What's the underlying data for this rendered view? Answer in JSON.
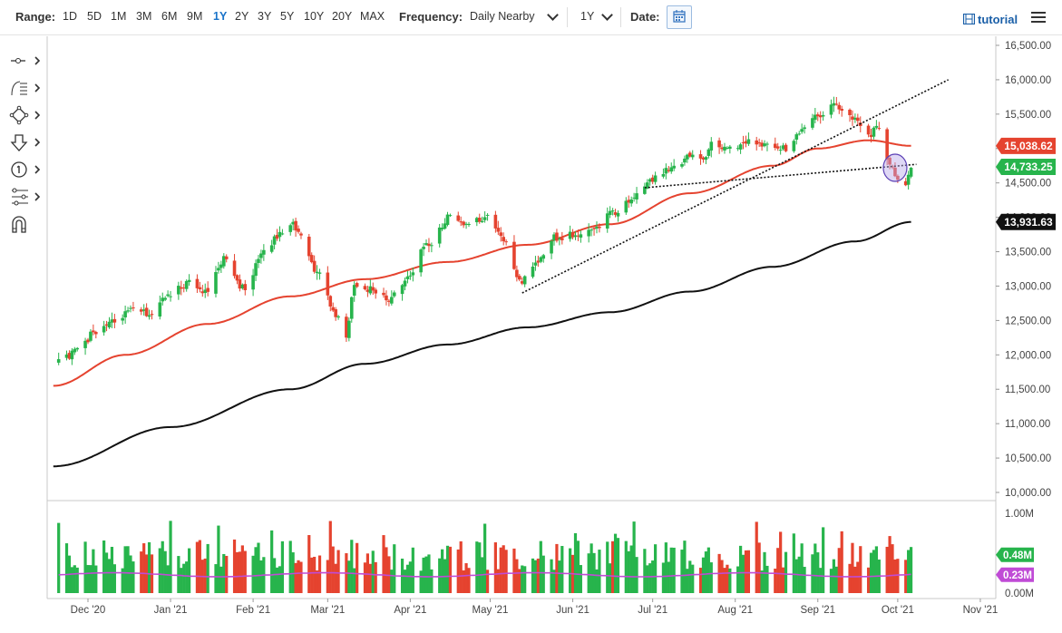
{
  "toolbar": {
    "range_label": "Range:",
    "ranges": [
      "1D",
      "5D",
      "1M",
      "3M",
      "6M",
      "9M",
      "1Y",
      "2Y",
      "3Y",
      "5Y",
      "10Y",
      "20Y",
      "MAX"
    ],
    "active_range": "1Y",
    "frequency_label": "Frequency:",
    "frequency_value": "Daily Nearby",
    "period_value": "1Y",
    "date_label": "Date:",
    "tutorial_label": "tutorial"
  },
  "side_tools": [
    "crosshair-tool-icon",
    "fibonacci-tool-icon",
    "shapes-tool-icon",
    "arrow-down-tool-icon",
    "numbered-marker-tool-icon",
    "pattern-tool-icon",
    "magnet-tool-icon"
  ],
  "chart_data": {
    "type": "candlestick",
    "price_axis": {
      "range": [
        10000,
        16500
      ],
      "ticks": [
        "16,500.00",
        "16,000.00",
        "15,500.00",
        "15,000.00",
        "14,500.00",
        "14,000.00",
        "13,500.00",
        "13,000.00",
        "12,500.00",
        "12,000.00",
        "11,500.00",
        "11,000.00",
        "10,500.00",
        "10,000.00"
      ],
      "badges": [
        {
          "value": "15,038.62",
          "color": "#e5432f",
          "series": "sma-50"
        },
        {
          "value": "14,733.25",
          "color": "#27b44c",
          "series": "last-price"
        },
        {
          "value": "13,931.63",
          "color": "#111111",
          "series": "sma-200"
        }
      ]
    },
    "volume_axis": {
      "range": [
        0,
        1000000
      ],
      "ticks": [
        "1.00M",
        "0.50M",
        "0.00M"
      ],
      "badges": [
        {
          "value": "0.48M",
          "color": "#27b44c",
          "series": "volume"
        },
        {
          "value": "0.23M",
          "color": "#c04bd6",
          "series": "volume-average"
        }
      ]
    },
    "x_ticks": [
      "Dec '20",
      "Jan '21",
      "Feb '21",
      "Mar '21",
      "Apr '21",
      "May '21",
      "Jun '21",
      "Jul '21",
      "Aug '21",
      "Sep '21",
      "Oct '21",
      "Nov '21"
    ],
    "price_anchors": [
      [
        "2020-11-20",
        11900
      ],
      [
        "2020-11-27",
        12050
      ],
      [
        "2020-12-04",
        12350
      ],
      [
        "2020-12-11",
        12500
      ],
      [
        "2020-12-18",
        12650
      ],
      [
        "2020-12-24",
        12600
      ],
      [
        "2020-12-31",
        12860
      ],
      [
        "2021-01-08",
        13050
      ],
      [
        "2021-01-15",
        12900
      ],
      [
        "2021-01-21",
        13400
      ],
      [
        "2021-01-29",
        12950
      ],
      [
        "2021-02-05",
        13500
      ],
      [
        "2021-02-12",
        13800
      ],
      [
        "2021-02-16",
        13900
      ],
      [
        "2021-02-19",
        13700
      ],
      [
        "2021-02-25",
        13200
      ],
      [
        "2021-03-04",
        12600
      ],
      [
        "2021-03-08",
        12300
      ],
      [
        "2021-03-11",
        13000
      ],
      [
        "2021-03-18",
        12950
      ],
      [
        "2021-03-24",
        12800
      ],
      [
        "2021-03-31",
        13100
      ],
      [
        "2021-04-07",
        13600
      ],
      [
        "2021-04-16",
        14000
      ],
      [
        "2021-04-23",
        13900
      ],
      [
        "2021-04-29",
        14000
      ],
      [
        "2021-05-06",
        13700
      ],
      [
        "2021-05-12",
        13050
      ],
      [
        "2021-05-18",
        13350
      ],
      [
        "2021-05-25",
        13700
      ],
      [
        "2021-06-01",
        13750
      ],
      [
        "2021-06-08",
        13800
      ],
      [
        "2021-06-15",
        14050
      ],
      [
        "2021-06-22",
        14200
      ],
      [
        "2021-06-30",
        14550
      ],
      [
        "2021-07-08",
        14700
      ],
      [
        "2021-07-16",
        14900
      ],
      [
        "2021-07-20",
        14850
      ],
      [
        "2021-07-23",
        15050
      ],
      [
        "2021-07-30",
        15000
      ],
      [
        "2021-08-06",
        15100
      ],
      [
        "2021-08-13",
        15050
      ],
      [
        "2021-08-19",
        15000
      ],
      [
        "2021-08-26",
        15250
      ],
      [
        "2021-09-01",
        15450
      ],
      [
        "2021-09-07",
        15650
      ],
      [
        "2021-09-10",
        15600
      ],
      [
        "2021-09-15",
        15450
      ],
      [
        "2021-09-20",
        15200
      ],
      [
        "2021-09-24",
        15300
      ],
      [
        "2021-09-28",
        14800
      ],
      [
        "2021-09-30",
        14600
      ],
      [
        "2021-10-04",
        14500
      ],
      [
        "2021-10-06",
        14733
      ]
    ],
    "sma50_anchors": [
      [
        "2020-11-18",
        11550
      ],
      [
        "2020-12-15",
        12000
      ],
      [
        "2021-01-15",
        12450
      ],
      [
        "2021-02-15",
        12850
      ],
      [
        "2021-03-15",
        13100
      ],
      [
        "2021-04-15",
        13350
      ],
      [
        "2021-05-15",
        13600
      ],
      [
        "2021-06-15",
        13900
      ],
      [
        "2021-07-15",
        14350
      ],
      [
        "2021-08-15",
        14750
      ],
      [
        "2021-09-01",
        15000
      ],
      [
        "2021-09-20",
        15120
      ],
      [
        "2021-10-06",
        15038.62
      ]
    ],
    "sma200_anchors": [
      [
        "2020-11-18",
        10380
      ],
      [
        "2021-01-01",
        10950
      ],
      [
        "2021-02-15",
        11500
      ],
      [
        "2021-03-15",
        11870
      ],
      [
        "2021-04-15",
        12150
      ],
      [
        "2021-05-15",
        12400
      ],
      [
        "2021-06-15",
        12620
      ],
      [
        "2021-07-15",
        12920
      ],
      [
        "2021-08-15",
        13280
      ],
      [
        "2021-09-15",
        13650
      ],
      [
        "2021-10-06",
        13931.63
      ]
    ],
    "trendlines": [
      {
        "from": [
          "2021-05-13",
          12900
        ],
        "to": [
          "2021-10-20",
          16000
        ]
      },
      {
        "from": [
          "2021-06-28",
          14430
        ],
        "to": [
          "2021-10-08",
          14770
        ]
      }
    ],
    "circle_annotation": {
      "date": "2021-09-30",
      "value": 14720
    }
  }
}
